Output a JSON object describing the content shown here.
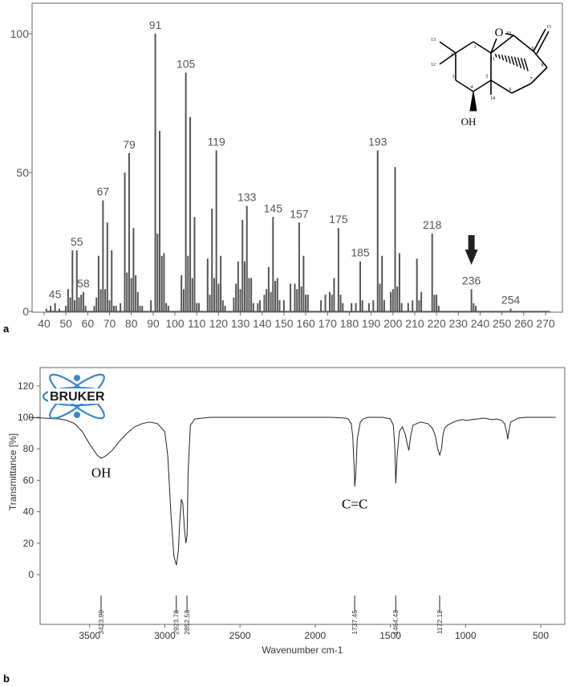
{
  "chart_data": [
    {
      "type": "bar",
      "panel_label": "a",
      "xlim": [
        37,
        275
      ],
      "ylim": [
        0,
        105
      ],
      "x_ticks": [
        40,
        50,
        60,
        70,
        80,
        90,
        100,
        110,
        120,
        130,
        140,
        150,
        160,
        170,
        180,
        190,
        200,
        210,
        220,
        230,
        240,
        250,
        260,
        270
      ],
      "y_ticks": [
        0,
        50,
        100
      ],
      "peaks": [
        {
          "x": 41,
          "y": 1
        },
        {
          "x": 43,
          "y": 2
        },
        {
          "x": 45,
          "y": 3
        },
        {
          "x": 47,
          "y": 1
        },
        {
          "x": 50,
          "y": 2
        },
        {
          "x": 51,
          "y": 8
        },
        {
          "x": 52,
          "y": 5
        },
        {
          "x": 53,
          "y": 22
        },
        {
          "x": 54,
          "y": 4
        },
        {
          "x": 55,
          "y": 22
        },
        {
          "x": 56,
          "y": 5
        },
        {
          "x": 57,
          "y": 6
        },
        {
          "x": 58,
          "y": 7
        },
        {
          "x": 59,
          "y": 2
        },
        {
          "x": 63,
          "y": 2
        },
        {
          "x": 64,
          "y": 5
        },
        {
          "x": 65,
          "y": 20
        },
        {
          "x": 66,
          "y": 8
        },
        {
          "x": 67,
          "y": 40
        },
        {
          "x": 68,
          "y": 8
        },
        {
          "x": 69,
          "y": 32
        },
        {
          "x": 70,
          "y": 4
        },
        {
          "x": 71,
          "y": 22
        },
        {
          "x": 72,
          "y": 2
        },
        {
          "x": 73,
          "y": 2
        },
        {
          "x": 75,
          "y": 3
        },
        {
          "x": 77,
          "y": 50
        },
        {
          "x": 78,
          "y": 14
        },
        {
          "x": 79,
          "y": 57
        },
        {
          "x": 80,
          "y": 12
        },
        {
          "x": 81,
          "y": 30
        },
        {
          "x": 82,
          "y": 13
        },
        {
          "x": 83,
          "y": 7
        },
        {
          "x": 84,
          "y": 2
        },
        {
          "x": 85,
          "y": 2
        },
        {
          "x": 89,
          "y": 4
        },
        {
          "x": 91,
          "y": 100
        },
        {
          "x": 92,
          "y": 28
        },
        {
          "x": 93,
          "y": 65
        },
        {
          "x": 94,
          "y": 20
        },
        {
          "x": 95,
          "y": 21
        },
        {
          "x": 96,
          "y": 3
        },
        {
          "x": 97,
          "y": 2
        },
        {
          "x": 103,
          "y": 13
        },
        {
          "x": 104,
          "y": 8
        },
        {
          "x": 105,
          "y": 86
        },
        {
          "x": 106,
          "y": 20
        },
        {
          "x": 107,
          "y": 70
        },
        {
          "x": 108,
          "y": 12
        },
        {
          "x": 109,
          "y": 34
        },
        {
          "x": 110,
          "y": 3
        },
        {
          "x": 111,
          "y": 3
        },
        {
          "x": 115,
          "y": 19
        },
        {
          "x": 116,
          "y": 6
        },
        {
          "x": 117,
          "y": 37
        },
        {
          "x": 118,
          "y": 12
        },
        {
          "x": 119,
          "y": 58
        },
        {
          "x": 120,
          "y": 10
        },
        {
          "x": 121,
          "y": 20
        },
        {
          "x": 122,
          "y": 4
        },
        {
          "x": 123,
          "y": 2
        },
        {
          "x": 127,
          "y": 5
        },
        {
          "x": 128,
          "y": 10
        },
        {
          "x": 129,
          "y": 18
        },
        {
          "x": 130,
          "y": 8
        },
        {
          "x": 131,
          "y": 33
        },
        {
          "x": 132,
          "y": 18
        },
        {
          "x": 133,
          "y": 38
        },
        {
          "x": 134,
          "y": 12
        },
        {
          "x": 135,
          "y": 12
        },
        {
          "x": 136,
          "y": 3
        },
        {
          "x": 138,
          "y": 3
        },
        {
          "x": 139,
          "y": 4
        },
        {
          "x": 141,
          "y": 6
        },
        {
          "x": 142,
          "y": 8
        },
        {
          "x": 143,
          "y": 16
        },
        {
          "x": 144,
          "y": 7
        },
        {
          "x": 145,
          "y": 34
        },
        {
          "x": 146,
          "y": 11
        },
        {
          "x": 147,
          "y": 12
        },
        {
          "x": 148,
          "y": 4
        },
        {
          "x": 150,
          "y": 4
        },
        {
          "x": 153,
          "y": 10
        },
        {
          "x": 155,
          "y": 10
        },
        {
          "x": 156,
          "y": 8
        },
        {
          "x": 157,
          "y": 32
        },
        {
          "x": 158,
          "y": 9
        },
        {
          "x": 159,
          "y": 20
        },
        {
          "x": 160,
          "y": 6
        },
        {
          "x": 161,
          "y": 6
        },
        {
          "x": 167,
          "y": 4
        },
        {
          "x": 169,
          "y": 6
        },
        {
          "x": 171,
          "y": 7
        },
        {
          "x": 172,
          "y": 6
        },
        {
          "x": 173,
          "y": 12
        },
        {
          "x": 175,
          "y": 30
        },
        {
          "x": 176,
          "y": 6
        },
        {
          "x": 177,
          "y": 3
        },
        {
          "x": 181,
          "y": 3
        },
        {
          "x": 183,
          "y": 3
        },
        {
          "x": 185,
          "y": 18
        },
        {
          "x": 186,
          "y": 4
        },
        {
          "x": 189,
          "y": 3
        },
        {
          "x": 191,
          "y": 4
        },
        {
          "x": 193,
          "y": 58
        },
        {
          "x": 194,
          "y": 10
        },
        {
          "x": 195,
          "y": 20
        },
        {
          "x": 196,
          "y": 4
        },
        {
          "x": 199,
          "y": 7
        },
        {
          "x": 200,
          "y": 8
        },
        {
          "x": 201,
          "y": 52
        },
        {
          "x": 202,
          "y": 9
        },
        {
          "x": 203,
          "y": 21
        },
        {
          "x": 204,
          "y": 3
        },
        {
          "x": 207,
          "y": 3
        },
        {
          "x": 209,
          "y": 4
        },
        {
          "x": 211,
          "y": 19
        },
        {
          "x": 212,
          "y": 4
        },
        {
          "x": 213,
          "y": 7
        },
        {
          "x": 218,
          "y": 28
        },
        {
          "x": 219,
          "y": 6
        },
        {
          "x": 220,
          "y": 6
        },
        {
          "x": 221,
          "y": 2
        },
        {
          "x": 236,
          "y": 8
        },
        {
          "x": 237,
          "y": 3
        },
        {
          "x": 238,
          "y": 2
        },
        {
          "x": 254,
          "y": 1
        }
      ],
      "peak_labels": [
        {
          "x": 45,
          "y": 3,
          "text": "45"
        },
        {
          "x": 55,
          "y": 22,
          "text": "55"
        },
        {
          "x": 58,
          "y": 7,
          "text": "58"
        },
        {
          "x": 67,
          "y": 40,
          "text": "67"
        },
        {
          "x": 79,
          "y": 57,
          "text": "79"
        },
        {
          "x": 91,
          "y": 100,
          "text": "91"
        },
        {
          "x": 105,
          "y": 86,
          "text": "105"
        },
        {
          "x": 119,
          "y": 58,
          "text": "119"
        },
        {
          "x": 133,
          "y": 38,
          "text": "133"
        },
        {
          "x": 145,
          "y": 34,
          "text": "145"
        },
        {
          "x": 157,
          "y": 32,
          "text": "157"
        },
        {
          "x": 175,
          "y": 30,
          "text": "175"
        },
        {
          "x": 185,
          "y": 18,
          "text": "185"
        },
        {
          "x": 193,
          "y": 58,
          "text": "193"
        },
        {
          "x": 218,
          "y": 28,
          "text": "218"
        },
        {
          "x": 236,
          "y": 8,
          "text": "236"
        },
        {
          "x": 254,
          "y": 1,
          "text": "254"
        }
      ],
      "arrow_at_x": 236,
      "structure_atom_labels": [
        "13",
        "12",
        "2",
        "1",
        "3",
        "4",
        "5",
        "6",
        "7",
        "8",
        "9",
        "10",
        "11",
        "14",
        "15",
        "O",
        "OH"
      ]
    },
    {
      "type": "line",
      "panel_label": "b",
      "title": "",
      "logo_text": "BRUKER",
      "xlabel": "Wavenumber cm-1",
      "ylabel": "Transmittance [%]",
      "xlim": [
        3900,
        400
      ],
      "ylim": [
        -5,
        128
      ],
      "x_ticks": [
        3500,
        3000,
        2500,
        2000,
        1500,
        1000,
        500
      ],
      "y_ticks": [
        0,
        20,
        40,
        60,
        80,
        100,
        120
      ],
      "series": [
        {
          "x": [
            3900,
            3800,
            3700,
            3650,
            3600,
            3550,
            3500,
            3450,
            3423,
            3400,
            3350,
            3300,
            3250,
            3200,
            3150,
            3100,
            3050,
            3000,
            2980,
            2960,
            2940,
            2923,
            2910,
            2900,
            2890,
            2880,
            2870,
            2860,
            2852,
            2845,
            2830,
            2800,
            2750,
            2700,
            2600,
            2500,
            2400,
            2300,
            2200,
            2100,
            2000,
            1900,
            1850,
            1800,
            1780,
            1760,
            1750,
            1740,
            1737,
            1730,
            1720,
            1700,
            1680,
            1650,
            1600,
            1550,
            1500,
            1480,
            1470,
            1464,
            1455,
            1440,
            1420,
            1400,
            1390,
            1377,
            1365,
            1350,
            1300,
            1250,
            1220,
            1200,
            1185,
            1172,
            1160,
            1150,
            1140,
            1120,
            1100,
            1080,
            1050,
            1020,
            1000,
            960,
            920,
            880,
            850,
            820,
            790,
            760,
            740,
            725,
            720,
            710,
            700,
            650,
            600,
            550,
            500,
            450,
            400
          ],
          "y": [
            100,
            99.5,
            99,
            98,
            96,
            91,
            83,
            76,
            74,
            75,
            79,
            85,
            90,
            94,
            96,
            97,
            96,
            91,
            75,
            40,
            12,
            6,
            15,
            35,
            48,
            45,
            30,
            20,
            25,
            65,
            95,
            99,
            99.5,
            100,
            100,
            100,
            100,
            100,
            100,
            100,
            100,
            100,
            99.8,
            99.5,
            99,
            96,
            88,
            66,
            56,
            64,
            86,
            97,
            99,
            100,
            100,
            100,
            99,
            95,
            80,
            58,
            75,
            91,
            94,
            89,
            84,
            79,
            88,
            95,
            97,
            96,
            93,
            88,
            80,
            76,
            80,
            89,
            93,
            95,
            96,
            97,
            98,
            98.5,
            98,
            98.5,
            99,
            99.5,
            99,
            98.5,
            99,
            98,
            96,
            90,
            86,
            92,
            97,
            99.5,
            100,
            100,
            100,
            100,
            100
          ]
        }
      ],
      "peak_markers": [
        {
          "x": 3423.9,
          "text": "3423.90"
        },
        {
          "x": 2923.78,
          "text": "2923.78"
        },
        {
          "x": 2852.53,
          "text": "2852.53"
        },
        {
          "x": 1737.45,
          "text": "1737.45"
        },
        {
          "x": 1464.43,
          "text": "1464.43"
        },
        {
          "x": 1172.12,
          "text": "1172.12"
        }
      ],
      "annotations": [
        {
          "x": 3423,
          "y": 62,
          "text": "OH"
        },
        {
          "x": 1737,
          "y": 42,
          "text": "C=C"
        }
      ]
    }
  ]
}
